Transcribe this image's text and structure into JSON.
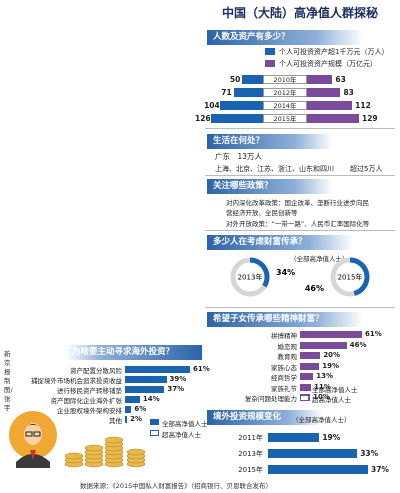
{
  "title": "中国（大陆）高净值人群探秘",
  "sections": {
    "s1": "人数及资产有多少？",
    "s2": "生活在何处？",
    "s3": "关注哪些政策？",
    "s4": "多少人在考虑财富传承？",
    "s5": "希望子女传承哪些精神财富？",
    "s6": "境外投资规模变化",
    "s7": "为啥要主动寻求海外投资？"
  },
  "s1_legend": {
    "blue": "个人可投资资产超1千万元",
    "blue_unit": "（万人）",
    "purple": "个人可投资资产规模",
    "purple_unit": "（万亿元）"
  },
  "s2_text": {
    "line1": "广东　13万人",
    "line2a": "上海、北京、江苏、浙江、山东和四川",
    "line2b": "超过5万人"
  },
  "s3_text": {
    "l1": "对内深化改革政策：国企改革、垄断行业进步向民",
    "l2": "营经济开放、全民创新等",
    "l3": "对外开放政策：“一带一路”、人民币汇率国际化等"
  },
  "s4_note": "（全部高净值人士）",
  "s6_note": "（全部高净值人士）",
  "legend_all": "全部高净值人士",
  "legend_ultra": "超高净值人士",
  "credit": "新京报制图/张宇",
  "source": "数据来源：《2015中国私人财富报告》（招商银行、贝恩联合发布）",
  "icons": {
    "coins": "coin-stack-icon",
    "person": "businessman-icon"
  },
  "colors": {
    "blue": "#1a63b1",
    "purple": "#7b4b9b",
    "header": "#2c64a9"
  },
  "chart_data": [
    {
      "type": "bar",
      "title": "人数及资产有多少？",
      "categories": [
        "2010年",
        "2012年",
        "2014年",
        "2015年"
      ],
      "series": [
        {
          "name": "个人可投资资产超1千万元（万人）",
          "values": [
            50,
            71,
            104,
            126
          ]
        },
        {
          "name": "个人可投资资产规模（万亿元）",
          "values": [
            63,
            83,
            112,
            129
          ]
        }
      ]
    },
    {
      "type": "pie",
      "title": "多少人在考虑财富传承？",
      "categories": [
        "2013年",
        "2015年"
      ],
      "values": [
        34,
        46
      ],
      "unit": "%"
    },
    {
      "type": "bar",
      "title": "希望子女传承哪些精神财富？",
      "categories": [
        "拼搏精神",
        "婚恋观",
        "教育观",
        "家族心态",
        "经商哲学",
        "家族礼节",
        "复杂问题处理能力"
      ],
      "series": [
        {
          "name": "全部高净值人士",
          "values": [
            61,
            46,
            20,
            19,
            13,
            11,
            10
          ]
        }
      ],
      "value_labels": [
        "61%",
        "46%",
        "20%",
        "19%",
        "13%",
        "11%",
        "10%"
      ]
    },
    {
      "type": "bar",
      "title": "境外投资规模变化",
      "categories": [
        "2011年",
        "2013年",
        "2015年"
      ],
      "values": [
        19,
        33,
        37
      ],
      "value_labels": [
        "19%",
        "33%",
        "37%"
      ]
    },
    {
      "type": "bar",
      "title": "为啥要主动寻求海外投资？",
      "categories": [
        "资产配置分散风险",
        "捕捉境外市场机会追求投资收益",
        "进行移民资产转移铺垫",
        "资产国际化企业海外扩张",
        "企业股权境外架构安排",
        "其他"
      ],
      "series": [
        {
          "name": "全部高净值人士",
          "values": [
            61,
            39,
            37,
            14,
            6,
            2
          ]
        }
      ],
      "value_labels": [
        "61%",
        "39%",
        "37%",
        "14%",
        "6%",
        "2%"
      ]
    }
  ]
}
